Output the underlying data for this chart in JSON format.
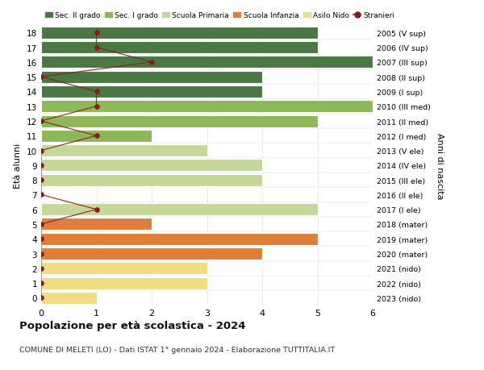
{
  "ages": [
    0,
    1,
    2,
    3,
    4,
    5,
    6,
    7,
    8,
    9,
    10,
    11,
    12,
    13,
    14,
    15,
    16,
    17,
    18
  ],
  "right_labels": [
    "2023 (nido)",
    "2022 (nido)",
    "2021 (nido)",
    "2020 (mater)",
    "2019 (mater)",
    "2018 (mater)",
    "2017 (I ele)",
    "2016 (II ele)",
    "2015 (III ele)",
    "2014 (IV ele)",
    "2013 (V ele)",
    "2012 (I med)",
    "2011 (II med)",
    "2010 (III med)",
    "2009 (I sup)",
    "2008 (II sup)",
    "2007 (III sup)",
    "2006 (IV sup)",
    "2005 (V sup)"
  ],
  "bar_values": [
    1,
    3,
    3,
    4,
    5,
    2,
    5,
    0,
    4,
    4,
    3,
    2,
    5,
    6,
    4,
    4,
    6,
    5,
    5
  ],
  "bar_colors": [
    "#f0dc82",
    "#f0dc82",
    "#f0dc82",
    "#df7e3a",
    "#df7e3a",
    "#df7e3a",
    "#c5d89a",
    "#c5d89a",
    "#c5d89a",
    "#c5d89a",
    "#c5d89a",
    "#8db85a",
    "#8db85a",
    "#8db85a",
    "#4a7843",
    "#4a7843",
    "#4a7843",
    "#4a7843",
    "#4a7843"
  ],
  "stranieri_values": [
    0,
    0,
    0,
    0,
    0,
    0,
    1,
    0,
    0,
    0,
    0,
    1,
    0,
    1,
    1,
    0,
    2,
    1,
    1
  ],
  "stranieri_color": "#8b1a1a",
  "legend_items": [
    {
      "label": "Sec. II grado",
      "color": "#4a7843"
    },
    {
      "label": "Sec. I grado",
      "color": "#8db85a"
    },
    {
      "label": "Scuola Primaria",
      "color": "#c5d89a"
    },
    {
      "label": "Scuola Infanzia",
      "color": "#df7e3a"
    },
    {
      "label": "Asilo Nido",
      "color": "#f0dc82"
    },
    {
      "label": "Stranieri",
      "color": "#8b1a1a"
    }
  ],
  "ylabel_left": "Età alunni",
  "ylabel_right": "Anni di nascita",
  "title": "Popolazione per età scolastica - 2024",
  "subtitle": "COMUNE DI MELETI (LO) - Dati ISTAT 1° gennaio 2024 - Elaborazione TUTTITALIA.IT",
  "xlim": [
    0,
    6
  ],
  "ylim": [
    -0.5,
    18.5
  ],
  "background_color": "#ffffff",
  "grid_color": "#d8d8d8"
}
